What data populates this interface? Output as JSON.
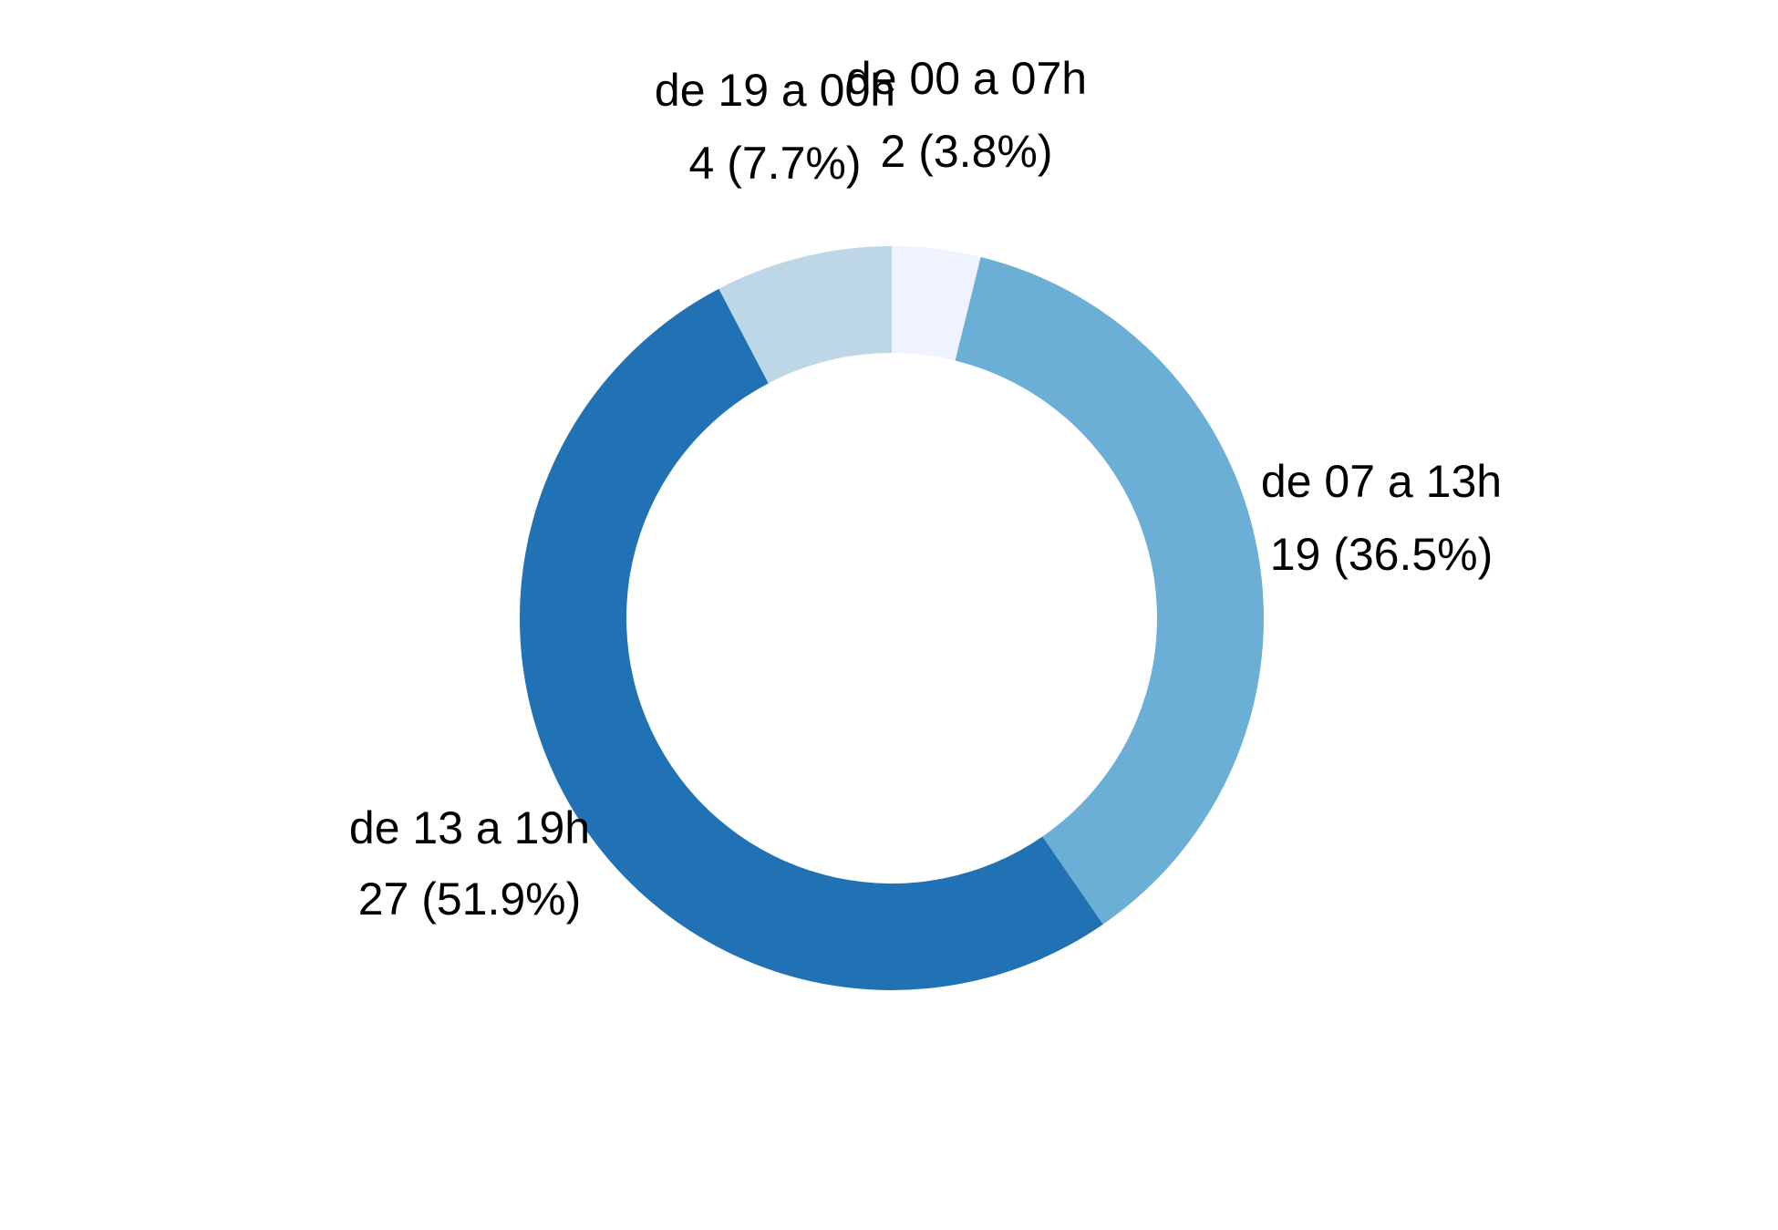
{
  "chart_data": {
    "type": "pie",
    "donut": true,
    "title": "",
    "categories": [
      "de 00 a 07h",
      "de 07 a 13h",
      "de 13 a 19h",
      "de 19 a 00h"
    ],
    "values": [
      2,
      19,
      27,
      4
    ],
    "value_labels": [
      "2 (3.8%)",
      "19 (36.5%)",
      "27 (51.9%)",
      "4 (7.7%)"
    ],
    "colors": [
      "#eff3ff",
      "#6baed6",
      "#2171b5",
      "#bdd7e7"
    ],
    "legend": "none"
  }
}
